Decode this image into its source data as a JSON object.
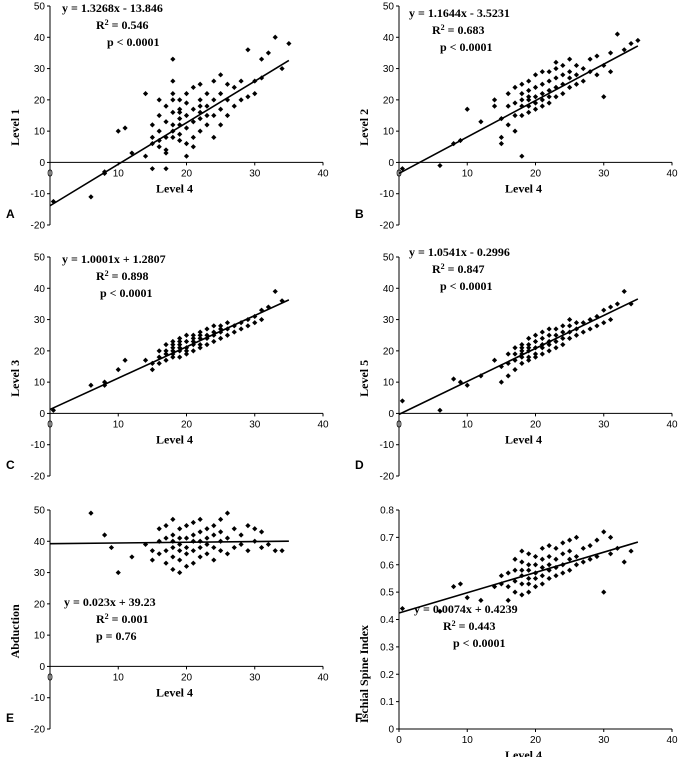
{
  "figure": {
    "panel_count": 6
  },
  "chart_data": [
    {
      "type": "scatter",
      "panel": "A",
      "title": "",
      "xlabel": "Level 4",
      "ylabel": "Level 1",
      "xlim": [
        0,
        40
      ],
      "ylim": [
        -20,
        50
      ],
      "xticks": [
        0,
        10,
        20,
        30,
        40
      ],
      "yticks": [
        -20,
        -10,
        0,
        10,
        20,
        30,
        40,
        50
      ],
      "equation": "y = 1.3268x - 13.846",
      "r2": "0.546",
      "p": "p < 0.0001",
      "r2_label": "R",
      "fit": {
        "slope": 1.3268,
        "intercept": -13.846,
        "x_range": [
          0,
          35
        ]
      },
      "x": [
        0.5,
        6,
        8,
        8,
        10,
        11,
        12,
        14,
        14,
        15,
        15,
        15,
        15,
        16,
        16,
        16,
        16,
        16,
        17,
        17,
        17,
        17,
        17,
        17,
        18,
        18,
        18,
        18,
        18,
        18,
        18,
        18,
        19,
        19,
        19,
        19,
        19,
        19,
        19,
        20,
        20,
        20,
        20,
        20,
        20,
        21,
        21,
        21,
        21,
        21,
        22,
        22,
        22,
        22,
        22,
        22,
        23,
        23,
        23,
        23,
        24,
        24,
        24,
        24,
        25,
        25,
        25,
        25,
        26,
        26,
        26,
        27,
        27,
        28,
        28,
        29,
        29,
        30,
        30,
        31,
        31,
        32,
        33,
        34,
        35
      ],
      "y": [
        -12.5,
        -11,
        -3,
        -3.5,
        10,
        11,
        3,
        2,
        22,
        -2,
        6,
        8,
        12,
        20,
        5,
        7,
        10,
        15,
        -2,
        4,
        8,
        13,
        18,
        3,
        8,
        10,
        12,
        16,
        20,
        22,
        26,
        33,
        7,
        9,
        12,
        14,
        16,
        17,
        20,
        2,
        6,
        11,
        15,
        19,
        22,
        5,
        8,
        13,
        17,
        24,
        10,
        14,
        16,
        18,
        20,
        25,
        12,
        15,
        18,
        22,
        8,
        15,
        20,
        26,
        12,
        17,
        22,
        28,
        15,
        20,
        25,
        18,
        24,
        20,
        26,
        21,
        36,
        22,
        26,
        27,
        33,
        35,
        40,
        30,
        38
      ]
    },
    {
      "type": "scatter",
      "panel": "B",
      "title": "",
      "xlabel": "Level 4",
      "ylabel": "Level 2",
      "xlim": [
        0,
        40
      ],
      "ylim": [
        -20,
        50
      ],
      "xticks": [
        0,
        10,
        20,
        30,
        40
      ],
      "yticks": [
        -20,
        -10,
        0,
        10,
        20,
        30,
        40,
        50
      ],
      "equation": "y = 1.1644x - 3.5231",
      "r2": "0.683",
      "p": "p < 0.0001",
      "r2_label": "R",
      "fit": {
        "slope": 1.1644,
        "intercept": -3.5231,
        "x_range": [
          0,
          35
        ]
      },
      "x": [
        0.5,
        6,
        8,
        9,
        10,
        12,
        14,
        14,
        15,
        15,
        15,
        16,
        16,
        16,
        17,
        17,
        17,
        17,
        18,
        18,
        18,
        18,
        18,
        18,
        19,
        19,
        19,
        19,
        19,
        19,
        20,
        20,
        20,
        20,
        20,
        21,
        21,
        21,
        21,
        21,
        22,
        22,
        22,
        22,
        22,
        23,
        23,
        23,
        23,
        23,
        24,
        24,
        24,
        24,
        25,
        25,
        25,
        25,
        26,
        26,
        26,
        27,
        27,
        28,
        28,
        29,
        29,
        30,
        30,
        31,
        31,
        32,
        33,
        34,
        35
      ],
      "y": [
        -2,
        -1,
        6,
        7,
        17,
        13,
        18,
        20,
        6,
        8,
        14,
        12,
        18,
        22,
        10,
        15,
        19,
        24,
        2,
        15,
        18,
        20,
        22,
        25,
        16,
        18,
        20,
        21,
        23,
        26,
        17,
        19,
        21,
        24,
        28,
        18,
        20,
        22,
        25,
        29,
        19,
        21,
        23,
        26,
        29,
        21,
        24,
        27,
        30,
        32,
        22,
        25,
        28,
        31,
        24,
        27,
        29,
        33,
        25,
        28,
        31,
        26,
        30,
        29,
        33,
        28,
        34,
        21,
        31,
        29,
        35,
        41,
        36,
        38,
        39
      ]
    },
    {
      "type": "scatter",
      "panel": "C",
      "title": "",
      "xlabel": "Level 4",
      "ylabel": "Level 3",
      "xlim": [
        0,
        40
      ],
      "ylim": [
        -20,
        50
      ],
      "xticks": [
        0,
        10,
        20,
        30,
        40
      ],
      "yticks": [
        -20,
        -10,
        0,
        10,
        20,
        30,
        40,
        50
      ],
      "equation": "y = 1.0001x + 1.2807",
      "r2": "0.898",
      "p": "p < 0.0001",
      "r2_label": "R",
      "fit": {
        "slope": 1.0001,
        "intercept": 1.2807,
        "x_range": [
          0,
          35
        ]
      },
      "x": [
        0.5,
        6,
        8,
        8,
        10,
        11,
        14,
        15,
        15,
        16,
        16,
        16,
        17,
        17,
        17,
        17,
        18,
        18,
        18,
        18,
        18,
        18,
        19,
        19,
        19,
        19,
        19,
        19,
        20,
        20,
        20,
        20,
        20,
        21,
        21,
        21,
        21,
        21,
        22,
        22,
        22,
        22,
        22,
        23,
        23,
        23,
        23,
        24,
        24,
        24,
        24,
        25,
        25,
        25,
        25,
        26,
        26,
        26,
        27,
        27,
        28,
        28,
        29,
        29,
        30,
        30,
        31,
        31,
        32,
        33,
        34
      ],
      "y": [
        1,
        9,
        9,
        10,
        14,
        17,
        17,
        14,
        16,
        16,
        18,
        20,
        17,
        19,
        20,
        22,
        18,
        19,
        20,
        21,
        22,
        23,
        18,
        20,
        21,
        22,
        23,
        24,
        19,
        20,
        21,
        23,
        25,
        20,
        22,
        23,
        24,
        25,
        21,
        22,
        24,
        25,
        26,
        22,
        24,
        25,
        27,
        23,
        25,
        26,
        28,
        24,
        26,
        27,
        28,
        25,
        27,
        29,
        26,
        28,
        27,
        29,
        28,
        30,
        29,
        31,
        30,
        33,
        34,
        39,
        36
      ]
    },
    {
      "type": "scatter",
      "panel": "D",
      "title": "",
      "xlabel": "Level 4",
      "ylabel": "Level 5",
      "xlim": [
        0,
        40
      ],
      "ylim": [
        -20,
        50
      ],
      "xticks": [
        0,
        10,
        20,
        30,
        40
      ],
      "yticks": [
        -20,
        -10,
        0,
        10,
        20,
        30,
        40,
        50
      ],
      "equation": "y = 1.0541x - 0.2996",
      "r2": "0.847",
      "p": "p < 0.0001",
      "r2_label": "R",
      "fit": {
        "slope": 1.0541,
        "intercept": -0.2996,
        "x_range": [
          0,
          35
        ]
      },
      "x": [
        0.5,
        6,
        8,
        9,
        10,
        12,
        14,
        15,
        15,
        16,
        16,
        16,
        17,
        17,
        17,
        17,
        18,
        18,
        18,
        18,
        18,
        18,
        19,
        19,
        19,
        19,
        19,
        19,
        20,
        20,
        20,
        20,
        20,
        21,
        21,
        21,
        21,
        21,
        22,
        22,
        22,
        22,
        22,
        23,
        23,
        23,
        23,
        24,
        24,
        24,
        24,
        25,
        25,
        25,
        25,
        26,
        26,
        26,
        27,
        27,
        28,
        28,
        29,
        29,
        30,
        30,
        31,
        31,
        32,
        33,
        34
      ],
      "y": [
        4,
        1,
        11,
        10,
        9,
        12,
        17,
        10,
        15,
        12,
        16,
        19,
        14,
        17,
        19,
        21,
        16,
        18,
        19,
        20,
        21,
        22,
        17,
        18,
        20,
        21,
        22,
        24,
        18,
        19,
        21,
        23,
        25,
        19,
        21,
        22,
        24,
        26,
        20,
        22,
        23,
        25,
        27,
        21,
        23,
        25,
        27,
        22,
        24,
        26,
        28,
        24,
        26,
        28,
        30,
        25,
        27,
        29,
        26,
        29,
        27,
        30,
        28,
        31,
        29,
        33,
        30,
        34,
        35,
        39,
        35
      ]
    },
    {
      "type": "scatter",
      "panel": "E",
      "title": "",
      "xlabel": "Level 4",
      "ylabel": "Abduction",
      "xlim": [
        0,
        40
      ],
      "ylim": [
        -20,
        50
      ],
      "xticks": [
        0,
        10,
        20,
        30,
        40
      ],
      "yticks": [
        -20,
        -10,
        0,
        10,
        20,
        30,
        40,
        50
      ],
      "equation": "y = 0.023x + 39.23",
      "r2": "0.001",
      "p": "p = 0.76",
      "r2_label": "R",
      "fit": {
        "slope": 0.023,
        "intercept": 39.23,
        "x_range": [
          0,
          35
        ]
      },
      "x": [
        6,
        8,
        9,
        10,
        12,
        14,
        15,
        15,
        16,
        16,
        16,
        17,
        17,
        17,
        17,
        18,
        18,
        18,
        18,
        18,
        18,
        19,
        19,
        19,
        19,
        19,
        19,
        20,
        20,
        20,
        20,
        20,
        21,
        21,
        21,
        21,
        21,
        22,
        22,
        22,
        22,
        22,
        23,
        23,
        23,
        23,
        24,
        24,
        24,
        24,
        25,
        25,
        25,
        25,
        26,
        26,
        26,
        27,
        27,
        28,
        28,
        29,
        29,
        30,
        30,
        31,
        31,
        32,
        33,
        34
      ],
      "y": [
        49,
        42,
        38,
        30,
        35,
        39,
        34,
        37,
        36,
        40,
        44,
        33,
        37,
        41,
        45,
        31,
        35,
        38,
        40,
        42,
        47,
        30,
        34,
        37,
        39,
        41,
        44,
        32,
        36,
        38,
        41,
        45,
        33,
        37,
        40,
        42,
        46,
        35,
        38,
        40,
        43,
        47,
        36,
        39,
        41,
        44,
        34,
        38,
        42,
        45,
        37,
        40,
        43,
        47,
        36,
        41,
        49,
        38,
        44,
        39,
        42,
        37,
        45,
        40,
        44,
        38,
        43,
        39,
        37,
        37
      ]
    },
    {
      "type": "scatter",
      "panel": "F",
      "title": "",
      "xlabel": "Level 4",
      "ylabel": "Ischial Spine Index",
      "xlim": [
        0,
        40
      ],
      "ylim": [
        0,
        0.8
      ],
      "xticks": [
        0,
        10,
        20,
        30,
        40
      ],
      "yticks": [
        0,
        0.1,
        0.2,
        0.3,
        0.4,
        0.5,
        0.6,
        0.7,
        0.8
      ],
      "equation": "y = 0.0074x + 0.4239",
      "r2": "0.443",
      "p": "p < 0.0001",
      "r2_label": "R",
      "fit": {
        "slope": 0.0074,
        "intercept": 0.4239,
        "x_range": [
          0,
          35
        ]
      },
      "x": [
        0.5,
        6,
        8,
        9,
        10,
        12,
        14,
        15,
        15,
        16,
        16,
        16,
        17,
        17,
        17,
        17,
        18,
        18,
        18,
        18,
        18,
        18,
        19,
        19,
        19,
        19,
        19,
        19,
        20,
        20,
        20,
        20,
        20,
        21,
        21,
        21,
        21,
        21,
        22,
        22,
        22,
        22,
        22,
        23,
        23,
        23,
        23,
        24,
        24,
        24,
        24,
        25,
        25,
        25,
        25,
        26,
        26,
        26,
        27,
        27,
        28,
        28,
        29,
        29,
        30,
        30,
        31,
        31,
        32,
        33,
        34
      ],
      "y": [
        0.44,
        0.43,
        0.52,
        0.53,
        0.48,
        0.47,
        0.52,
        0.53,
        0.56,
        0.47,
        0.52,
        0.57,
        0.5,
        0.54,
        0.58,
        0.62,
        0.49,
        0.53,
        0.56,
        0.58,
        0.61,
        0.65,
        0.5,
        0.53,
        0.55,
        0.58,
        0.6,
        0.64,
        0.52,
        0.55,
        0.57,
        0.6,
        0.63,
        0.53,
        0.56,
        0.59,
        0.62,
        0.66,
        0.55,
        0.58,
        0.6,
        0.63,
        0.67,
        0.56,
        0.59,
        0.62,
        0.66,
        0.57,
        0.6,
        0.64,
        0.68,
        0.58,
        0.62,
        0.65,
        0.69,
        0.6,
        0.63,
        0.7,
        0.61,
        0.66,
        0.62,
        0.67,
        0.63,
        0.69,
        0.5,
        0.72,
        0.64,
        0.7,
        0.66,
        0.61,
        0.65
      ]
    }
  ]
}
